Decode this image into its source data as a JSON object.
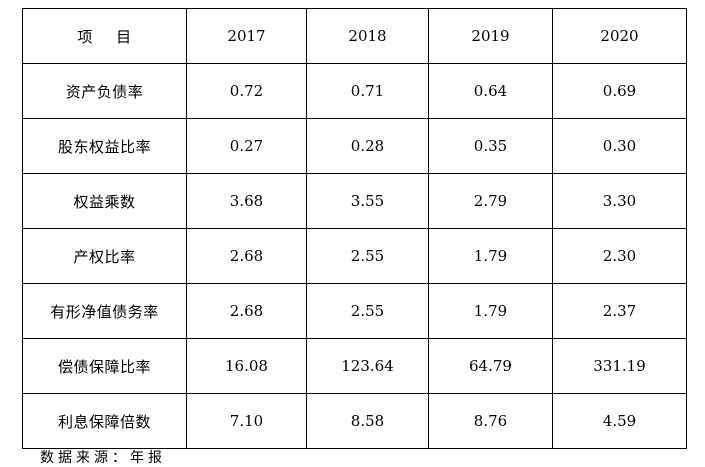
{
  "table": {
    "header": {
      "label": "项    目",
      "years": [
        "2017",
        "2018",
        "2019",
        "2020"
      ]
    },
    "rows": [
      {
        "label": "资产负债率",
        "values": [
          "0.72",
          "0.71",
          "0.64",
          "0.69"
        ]
      },
      {
        "label": "股东权益比率",
        "values": [
          "0.27",
          "0.28",
          "0.35",
          "0.30"
        ]
      },
      {
        "label": "权益乘数",
        "values": [
          "3.68",
          "3.55",
          "2.79",
          "3.30"
        ]
      },
      {
        "label": "产权比率",
        "values": [
          "2.68",
          "2.55",
          "1.79",
          "2.30"
        ]
      },
      {
        "label": "有形净值债务率",
        "values": [
          "2.68",
          "2.55",
          "1.79",
          "2.37"
        ]
      },
      {
        "label": "偿债保障比率",
        "values": [
          "16.08",
          "123.64",
          "64.79",
          "331.19"
        ]
      },
      {
        "label": "利息保障倍数",
        "values": [
          "7.10",
          "8.58",
          "8.76",
          "4.59"
        ]
      }
    ]
  },
  "footer": {
    "note": "数据来源：年报"
  }
}
